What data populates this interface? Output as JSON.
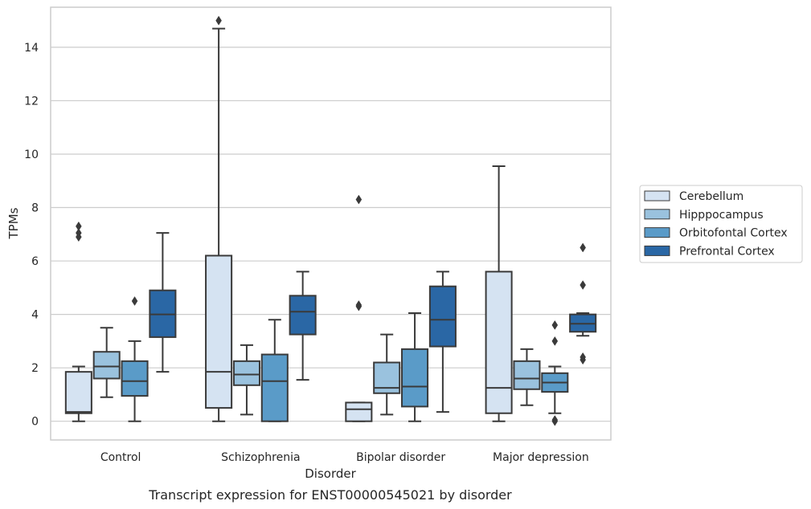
{
  "chart_data": {
    "type": "box",
    "title": "Transcript expression for ENST00000545021 by disorder",
    "xlabel": "Disorder",
    "ylabel": "TPMs",
    "categories": [
      "Control",
      "Schizophrenia",
      "Bipolar disorder",
      "Major depression"
    ],
    "ylim": [
      -0.7,
      15.5
    ],
    "yticks": [
      0,
      2,
      4,
      6,
      8,
      10,
      12,
      14
    ],
    "grid": "horizontal",
    "legend_position": "right",
    "series": [
      {
        "name": "Cerebellum",
        "color": "#d5e3f2",
        "boxes": [
          {
            "whisker_low": 0.0,
            "q1": 0.3,
            "median": 0.35,
            "q3": 1.85,
            "whisker_high": 2.05,
            "outliers": [
              6.9,
              7.05,
              7.3
            ]
          },
          {
            "whisker_low": 0.0,
            "q1": 0.5,
            "median": 1.85,
            "q3": 6.2,
            "whisker_high": 14.7,
            "outliers": [
              15.0
            ]
          },
          {
            "whisker_low": 0.0,
            "q1": 0.0,
            "median": 0.45,
            "q3": 0.7,
            "whisker_high": 0.7,
            "outliers": [
              4.3,
              4.35,
              8.3
            ]
          },
          {
            "whisker_low": 0.0,
            "q1": 0.3,
            "median": 1.25,
            "q3": 5.6,
            "whisker_high": 9.55,
            "outliers": []
          }
        ]
      },
      {
        "name": "Hipppocampus",
        "color": "#9ac2de",
        "boxes": [
          {
            "whisker_low": 0.9,
            "q1": 1.6,
            "median": 2.05,
            "q3": 2.6,
            "whisker_high": 3.5,
            "outliers": []
          },
          {
            "whisker_low": 0.25,
            "q1": 1.35,
            "median": 1.75,
            "q3": 2.25,
            "whisker_high": 2.85,
            "outliers": []
          },
          {
            "whisker_low": 0.25,
            "q1": 1.05,
            "median": 1.25,
            "q3": 2.2,
            "whisker_high": 3.25,
            "outliers": []
          },
          {
            "whisker_low": 0.6,
            "q1": 1.2,
            "median": 1.6,
            "q3": 2.25,
            "whisker_high": 2.7,
            "outliers": []
          }
        ]
      },
      {
        "name": "Orbitofontal Cortex",
        "color": "#5a9bc8",
        "boxes": [
          {
            "whisker_low": 0.0,
            "q1": 0.95,
            "median": 1.5,
            "q3": 2.25,
            "whisker_high": 3.0,
            "outliers": [
              4.5
            ]
          },
          {
            "whisker_low": 0.0,
            "q1": 0.0,
            "median": 1.5,
            "q3": 2.5,
            "whisker_high": 3.8,
            "outliers": []
          },
          {
            "whisker_low": 0.0,
            "q1": 0.55,
            "median": 1.3,
            "q3": 2.7,
            "whisker_high": 4.05,
            "outliers": []
          },
          {
            "whisker_low": 0.3,
            "q1": 1.1,
            "median": 1.45,
            "q3": 1.8,
            "whisker_high": 2.05,
            "outliers": [
              0.0,
              0.05,
              3.0,
              3.6
            ]
          }
        ]
      },
      {
        "name": "Prefrontal Cortex",
        "color": "#2a67a5",
        "boxes": [
          {
            "whisker_low": 1.85,
            "q1": 3.15,
            "median": 4.0,
            "q3": 4.9,
            "whisker_high": 7.05,
            "outliers": []
          },
          {
            "whisker_low": 1.55,
            "q1": 3.25,
            "median": 4.1,
            "q3": 4.7,
            "whisker_high": 5.6,
            "outliers": []
          },
          {
            "whisker_low": 0.35,
            "q1": 2.8,
            "median": 3.8,
            "q3": 5.05,
            "whisker_high": 5.6,
            "outliers": []
          },
          {
            "whisker_low": 3.2,
            "q1": 3.35,
            "median": 3.65,
            "q3": 4.0,
            "whisker_high": 4.05,
            "outliers": [
              2.3,
              2.4,
              5.1,
              6.5
            ]
          }
        ]
      }
    ]
  }
}
